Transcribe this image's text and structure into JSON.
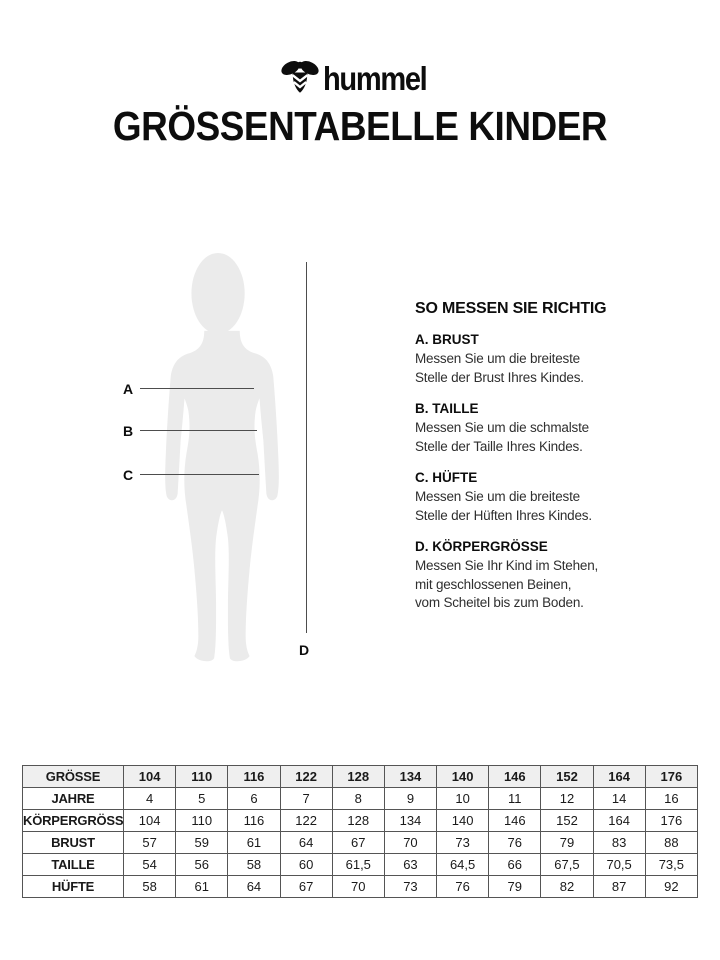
{
  "brand": {
    "wordmark": "hummel",
    "bee_icon": "hummel-bee-icon"
  },
  "page_title": "GRÖSSENTABELLE KINDER",
  "diagram": {
    "label_a": "A",
    "label_b": "B",
    "label_c": "C",
    "label_d": "D"
  },
  "instructions": {
    "heading": "SO MESSEN SIE RICHTIG",
    "sections": [
      {
        "title": "A. BRUST",
        "lines": [
          "Messen Sie um die breiteste",
          "Stelle der Brust Ihres Kindes."
        ]
      },
      {
        "title": "B. TAILLE",
        "lines": [
          "Messen Sie um die schmalste",
          "Stelle der Taille Ihres Kindes."
        ]
      },
      {
        "title": "C. HÜFTE",
        "lines": [
          "Messen Sie um die breiteste",
          "Stelle der Hüften Ihres Kindes."
        ]
      },
      {
        "title": "D. KÖRPERGRÖSSE",
        "lines": [
          "Messen Sie Ihr Kind im Stehen,",
          "mit geschlossenen Beinen,",
          "vom Scheitel bis zum Boden."
        ]
      }
    ]
  },
  "size_table": {
    "rows": [
      {
        "header": true,
        "label": "GRÖSSE",
        "values": [
          "104",
          "110",
          "116",
          "122",
          "128",
          "134",
          "140",
          "146",
          "152",
          "164",
          "176"
        ]
      },
      {
        "header": false,
        "label": "JAHRE",
        "values": [
          "4",
          "5",
          "6",
          "7",
          "8",
          "9",
          "10",
          "11",
          "12",
          "14",
          "16"
        ]
      },
      {
        "header": false,
        "label": "KÖRPERGRÖSSE",
        "values": [
          "104",
          "110",
          "116",
          "122",
          "128",
          "134",
          "140",
          "146",
          "152",
          "164",
          "176"
        ]
      },
      {
        "header": false,
        "label": "BRUST",
        "values": [
          "57",
          "59",
          "61",
          "64",
          "67",
          "70",
          "73",
          "76",
          "79",
          "83",
          "88"
        ]
      },
      {
        "header": false,
        "label": "TAILLE",
        "values": [
          "54",
          "56",
          "58",
          "60",
          "61,5",
          "63",
          "64,5",
          "66",
          "67,5",
          "70,5",
          "73,5"
        ]
      },
      {
        "header": false,
        "label": "HÜFTE",
        "values": [
          "58",
          "61",
          "64",
          "67",
          "70",
          "73",
          "76",
          "79",
          "82",
          "87",
          "92"
        ]
      }
    ]
  },
  "colors": {
    "text": "#0d0d0d",
    "body_text": "#2f2f2f",
    "silhouette": "#ebebeb",
    "measure_line": "#4d4d4d",
    "table_border": "#555555",
    "table_header_bg": "#efefef",
    "background": "#ffffff"
  }
}
